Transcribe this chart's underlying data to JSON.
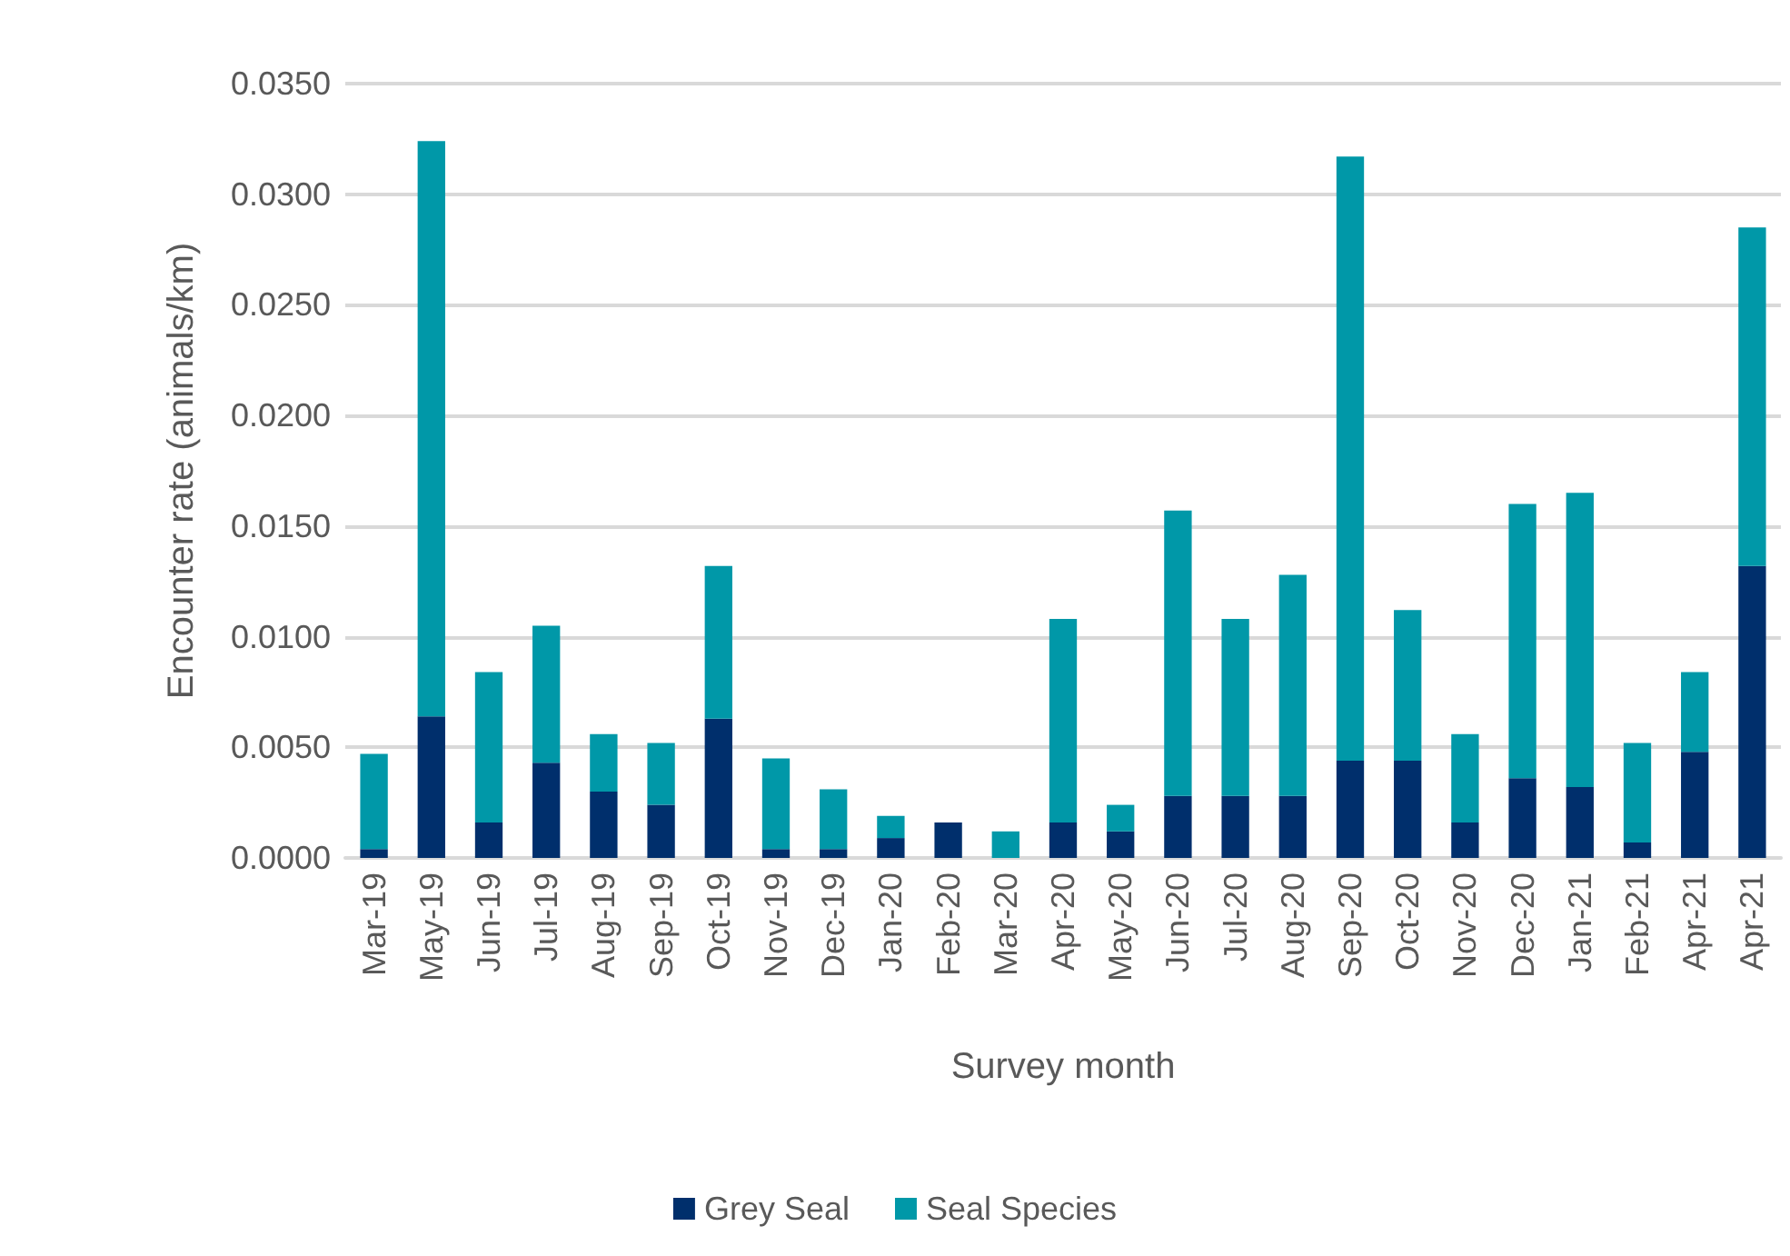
{
  "chart_data": {
    "type": "bar",
    "stacked": true,
    "xlabel": "Survey month",
    "ylabel": "Encounter rate (animals/km)",
    "categories": [
      "Mar-19",
      "May-19",
      "Jun-19",
      "Jul-19",
      "Aug-19",
      "Sep-19",
      "Oct-19",
      "Nov-19",
      "Dec-19",
      "Jan-20",
      "Feb-20",
      "Mar-20",
      "Apr-20",
      "May-20",
      "Jun-20",
      "Jul-20",
      "Aug-20",
      "Sep-20",
      "Oct-20",
      "Nov-20",
      "Dec-20",
      "Jan-21",
      "Feb-21",
      "Apr-21",
      "Apr-21"
    ],
    "series": [
      {
        "name": "Grey Seal",
        "color": "#002f6c",
        "values": [
          0.0004,
          0.0064,
          0.0016,
          0.0043,
          0.003,
          0.0024,
          0.0063,
          0.0004,
          0.0004,
          0.0009,
          0.0016,
          0,
          0.0016,
          0.0012,
          0.0028,
          0.0028,
          0.0028,
          0.0044,
          0.0044,
          0.0016,
          0.0036,
          0.0032,
          0.0007,
          0.0048,
          0.0132
        ]
      },
      {
        "name": "Seal Species",
        "color": "#0098a8",
        "values": [
          0.0043,
          0.026,
          0.0068,
          0.0062,
          0.0026,
          0.0028,
          0.0069,
          0.0041,
          0.0027,
          0.001,
          0,
          0.0012,
          0.0092,
          0.0012,
          0.0129,
          0.008,
          0.01,
          0.0273,
          0.0068,
          0.004,
          0.0124,
          0.0133,
          0.0045,
          0.0036,
          0.0153
        ]
      }
    ],
    "ylim": [
      0,
      0.035
    ],
    "yticks": [
      {
        "value": 0,
        "label": "0.0000"
      },
      {
        "value": 0.005,
        "label": "0.0050"
      },
      {
        "value": 0.01,
        "label": "0.0100"
      },
      {
        "value": 0.015,
        "label": "0.0150"
      },
      {
        "value": 0.02,
        "label": "0.0200"
      },
      {
        "value": 0.025,
        "label": "0.0250"
      },
      {
        "value": 0.03,
        "label": "0.0300"
      },
      {
        "value": 0.035,
        "label": "0.0350"
      }
    ],
    "grid": "y",
    "legend": "bottom"
  }
}
